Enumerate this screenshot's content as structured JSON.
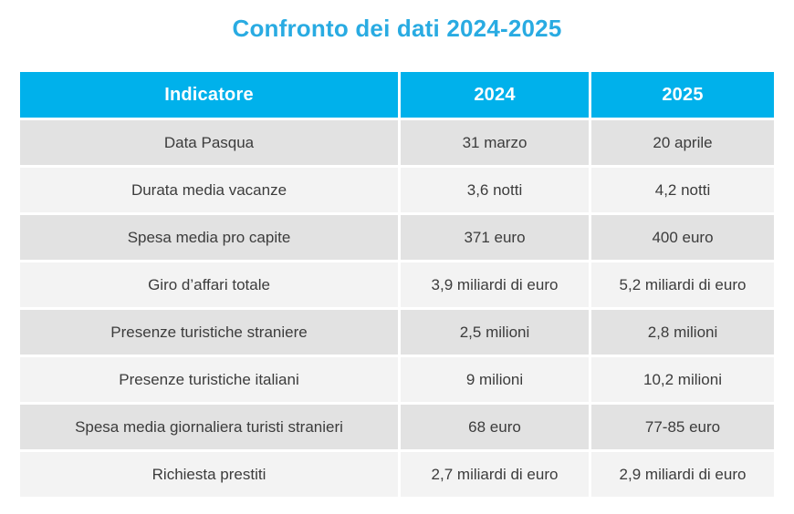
{
  "title": "Confronto dei dati 2024-2025",
  "colors": {
    "title_text": "#29ABE2",
    "header_bg": "#00B1EB",
    "header_text": "#FFFFFF",
    "row_dark_bg": "#E2E2E2",
    "row_light_bg": "#F3F3F3",
    "body_text": "#3C3C3C"
  },
  "table": {
    "headers": [
      "Indicatore",
      "2024",
      "2025"
    ],
    "rows": [
      [
        "Data Pasqua",
        "31 marzo",
        "20 aprile"
      ],
      [
        "Durata media vacanze",
        "3,6 notti",
        "4,2 notti"
      ],
      [
        "Spesa media pro capite",
        "371 euro",
        "400 euro"
      ],
      [
        "Giro d’affari totale",
        "3,9 miliardi di euro",
        "5,2 miliardi di euro"
      ],
      [
        "Presenze turistiche straniere",
        "2,5 milioni",
        "2,8 milioni"
      ],
      [
        "Presenze turistiche italiani",
        "9 milioni",
        "10,2 milioni"
      ],
      [
        "Spesa media giornaliera turisti stranieri",
        "68 euro",
        "77-85 euro"
      ],
      [
        "Richiesta prestiti",
        "2,7 miliardi di euro",
        "2,9 miliardi di euro"
      ]
    ]
  },
  "chart_data": {
    "type": "table",
    "title": "Confronto dei dati 2024-2025",
    "columns": [
      "Indicatore",
      "2024",
      "2025"
    ],
    "rows": [
      {
        "indicatore": "Data Pasqua",
        "2024": "31 marzo",
        "2025": "20 aprile"
      },
      {
        "indicatore": "Durata media vacanze",
        "2024": "3,6 notti",
        "2025": "4,2 notti"
      },
      {
        "indicatore": "Spesa media pro capite",
        "2024": "371 euro",
        "2025": "400 euro"
      },
      {
        "indicatore": "Giro d’affari totale",
        "2024": "3,9 miliardi di euro",
        "2025": "5,2 miliardi di euro"
      },
      {
        "indicatore": "Presenze turistiche straniere",
        "2024": "2,5 milioni",
        "2025": "2,8 milioni"
      },
      {
        "indicatore": "Presenze turistiche italiani",
        "2024": "9 milioni",
        "2025": "10,2 milioni"
      },
      {
        "indicatore": "Spesa media giornaliera turisti stranieri",
        "2024": "68 euro",
        "2025": "77-85 euro"
      },
      {
        "indicatore": "Richiesta prestiti",
        "2024": "2,7 miliardi di euro",
        "2025": "2,9 miliardi di euro"
      }
    ]
  }
}
